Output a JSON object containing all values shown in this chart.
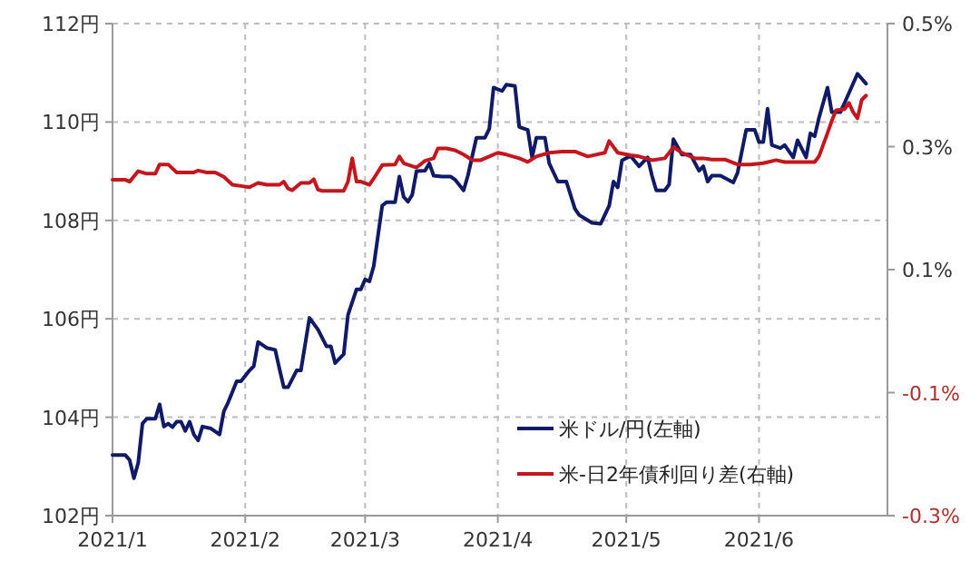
{
  "chart_data": {
    "type": "line",
    "grid": true,
    "legend": "bottom right",
    "xlim": [
      "2021-01-01",
      "2021-07-01"
    ],
    "xticks": [
      {
        "value": "2021-01-01",
        "label": "2021/1"
      },
      {
        "value": "2021-02-01",
        "label": "2021/2"
      },
      {
        "value": "2021-03-01",
        "label": "2021/3"
      },
      {
        "value": "2021-04-01",
        "label": "2021/4"
      },
      {
        "value": "2021-05-01",
        "label": "2021/5"
      },
      {
        "value": "2021-06-01",
        "label": "2021/6"
      }
    ],
    "ylim": [
      102,
      112
    ],
    "yticks": [
      {
        "value": 102,
        "label": "102円"
      },
      {
        "value": 104,
        "label": "104円"
      },
      {
        "value": 106,
        "label": "106円"
      },
      {
        "value": 108,
        "label": "108円"
      },
      {
        "value": 110,
        "label": "110円"
      },
      {
        "value": 112,
        "label": "112円"
      }
    ],
    "y2lim": [
      -0.3,
      0.5
    ],
    "y2ticks": [
      {
        "value": -0.3,
        "label": "-0.3%"
      },
      {
        "value": -0.1,
        "label": "-0.1%"
      },
      {
        "value": 0.1,
        "label": "0.1%"
      },
      {
        "value": 0.3,
        "label": "0.3%"
      },
      {
        "value": 0.5,
        "label": "0.5%"
      }
    ],
    "series": [
      {
        "name": "米ドル/円(左軸)",
        "color": "#101a66",
        "axis": "y",
        "x": [
          "2021-01-01",
          "2021-01-04",
          "2021-01-05",
          "2021-01-06",
          "2021-01-07",
          "2021-01-08",
          "2021-01-09",
          "2021-01-11",
          "2021-01-12",
          "2021-01-13",
          "2021-01-14",
          "2021-01-15",
          "2021-01-16",
          "2021-01-17",
          "2021-01-18",
          "2021-01-19",
          "2021-01-20",
          "2021-01-21",
          "2021-01-22",
          "2021-01-24",
          "2021-01-26",
          "2021-01-27",
          "2021-01-28",
          "2021-01-30",
          "2021-01-31",
          "2021-02-02",
          "2021-02-03",
          "2021-02-04",
          "2021-02-06",
          "2021-02-08",
          "2021-02-09",
          "2021-02-10",
          "2021-02-11",
          "2021-02-13",
          "2021-02-14",
          "2021-02-16",
          "2021-02-18",
          "2021-02-20",
          "2021-02-21",
          "2021-02-22",
          "2021-02-24",
          "2021-02-25",
          "2021-02-27",
          "2021-02-28",
          "2021-03-01",
          "2021-03-02",
          "2021-03-03",
          "2021-03-05",
          "2021-03-06",
          "2021-03-08",
          "2021-03-09",
          "2021-03-10",
          "2021-03-11",
          "2021-03-12",
          "2021-03-13",
          "2021-03-15",
          "2021-03-16",
          "2021-03-17",
          "2021-03-19",
          "2021-03-21",
          "2021-03-22",
          "2021-03-24",
          "2021-03-25",
          "2021-03-27",
          "2021-03-29",
          "2021-03-30",
          "2021-03-31",
          "2021-04-02",
          "2021-04-03",
          "2021-04-05",
          "2021-04-06",
          "2021-04-08",
          "2021-04-09",
          "2021-04-10",
          "2021-04-12",
          "2021-04-13",
          "2021-04-15",
          "2021-04-17",
          "2021-04-19",
          "2021-04-20",
          "2021-04-23",
          "2021-04-25",
          "2021-04-27",
          "2021-04-28",
          "2021-04-29",
          "2021-04-30",
          "2021-05-02",
          "2021-05-04",
          "2021-05-06",
          "2021-05-07",
          "2021-05-08",
          "2021-05-10",
          "2021-05-11",
          "2021-05-12",
          "2021-05-14",
          "2021-05-16",
          "2021-05-18",
          "2021-05-19",
          "2021-05-20",
          "2021-05-21",
          "2021-05-23",
          "2021-05-26",
          "2021-05-27",
          "2021-05-29",
          "2021-05-31",
          "2021-06-01",
          "2021-06-02",
          "2021-06-03",
          "2021-06-04",
          "2021-06-06",
          "2021-06-07",
          "2021-06-09",
          "2021-06-10",
          "2021-06-12",
          "2021-06-13",
          "2021-06-14",
          "2021-06-15",
          "2021-06-17",
          "2021-06-18",
          "2021-06-20",
          "2021-06-21",
          "2021-06-24",
          "2021-06-26"
        ],
        "values": [
          103.23,
          103.23,
          103.13,
          102.76,
          103.07,
          103.87,
          103.97,
          103.97,
          104.26,
          103.81,
          103.87,
          103.8,
          103.91,
          103.91,
          103.72,
          103.91,
          103.65,
          103.53,
          103.81,
          103.77,
          103.65,
          104.12,
          104.3,
          104.73,
          104.73,
          104.95,
          105.04,
          105.53,
          105.41,
          105.37,
          104.98,
          104.61,
          104.61,
          104.95,
          104.95,
          106.02,
          105.78,
          105.44,
          105.44,
          105.1,
          105.28,
          106.08,
          106.6,
          106.6,
          106.8,
          106.76,
          107.07,
          108.3,
          108.37,
          108.37,
          108.89,
          108.48,
          108.38,
          108.52,
          109.0,
          109.01,
          109.16,
          108.91,
          108.89,
          108.89,
          108.83,
          108.61,
          108.91,
          109.68,
          109.68,
          109.86,
          110.7,
          110.63,
          110.76,
          110.73,
          109.9,
          109.84,
          109.28,
          109.68,
          109.68,
          109.16,
          108.79,
          108.79,
          108.24,
          108.11,
          107.95,
          107.93,
          108.3,
          108.79,
          108.67,
          109.22,
          109.31,
          109.1,
          109.28,
          108.91,
          108.61,
          108.61,
          108.73,
          109.65,
          109.34,
          109.34,
          109.01,
          109.1,
          108.79,
          108.91,
          108.91,
          108.77,
          108.97,
          109.84,
          109.84,
          109.59,
          109.59,
          110.27,
          109.53,
          109.47,
          109.53,
          109.28,
          109.63,
          109.28,
          109.77,
          109.71,
          110.08,
          110.7,
          110.2,
          110.2,
          110.39,
          110.98,
          110.78
        ]
      },
      {
        "name": "米-日2年債利回り差(右軸)",
        "color": "#c4161c",
        "axis": "y2",
        "x": [
          "2021-01-01",
          "2021-01-04",
          "2021-01-05",
          "2021-01-07",
          "2021-01-09",
          "2021-01-11",
          "2021-01-12",
          "2021-01-14",
          "2021-01-16",
          "2021-01-20",
          "2021-01-21",
          "2021-01-23",
          "2021-01-25",
          "2021-01-27",
          "2021-01-29",
          "2021-01-31",
          "2021-02-02",
          "2021-02-04",
          "2021-02-06",
          "2021-02-09",
          "2021-02-10",
          "2021-02-11",
          "2021-02-12",
          "2021-02-14",
          "2021-02-16",
          "2021-02-17",
          "2021-02-18",
          "2021-02-19",
          "2021-02-24",
          "2021-02-25",
          "2021-02-26",
          "2021-02-27",
          "2021-02-28",
          "2021-03-02",
          "2021-03-03",
          "2021-03-05",
          "2021-03-08",
          "2021-03-09",
          "2021-03-10",
          "2021-03-13",
          "2021-03-15",
          "2021-03-17",
          "2021-03-18",
          "2021-03-20",
          "2021-03-22",
          "2021-03-24",
          "2021-03-26",
          "2021-03-28",
          "2021-03-30",
          "2021-04-01",
          "2021-04-03",
          "2021-04-06",
          "2021-04-08",
          "2021-04-10",
          "2021-04-13",
          "2021-04-16",
          "2021-04-19",
          "2021-04-22",
          "2021-04-26",
          "2021-04-27",
          "2021-04-29",
          "2021-05-02",
          "2021-05-04",
          "2021-05-07",
          "2021-05-10",
          "2021-05-12",
          "2021-05-14",
          "2021-05-17",
          "2021-05-19",
          "2021-05-21",
          "2021-05-24",
          "2021-05-27",
          "2021-05-30",
          "2021-06-02",
          "2021-06-05",
          "2021-06-07",
          "2021-06-10",
          "2021-06-14",
          "2021-06-15",
          "2021-06-17",
          "2021-06-18",
          "2021-06-19",
          "2021-06-21",
          "2021-06-22",
          "2021-06-23",
          "2021-06-24",
          "2021-06-25",
          "2021-06-26"
        ],
        "values": [
          0.246,
          0.246,
          0.243,
          0.26,
          0.256,
          0.256,
          0.271,
          0.271,
          0.258,
          0.258,
          0.261,
          0.258,
          0.258,
          0.251,
          0.238,
          0.236,
          0.234,
          0.241,
          0.238,
          0.238,
          0.243,
          0.232,
          0.229,
          0.241,
          0.241,
          0.247,
          0.23,
          0.228,
          0.228,
          0.243,
          0.281,
          0.243,
          0.243,
          0.238,
          0.248,
          0.27,
          0.271,
          0.284,
          0.273,
          0.266,
          0.277,
          0.281,
          0.297,
          0.297,
          0.294,
          0.287,
          0.278,
          0.278,
          0.284,
          0.29,
          0.287,
          0.281,
          0.275,
          0.284,
          0.29,
          0.292,
          0.292,
          0.284,
          0.29,
          0.309,
          0.29,
          0.286,
          0.284,
          0.278,
          0.281,
          0.299,
          0.29,
          0.281,
          0.281,
          0.279,
          0.279,
          0.271,
          0.271,
          0.273,
          0.278,
          0.275,
          0.275,
          0.275,
          0.284,
          0.322,
          0.342,
          0.359,
          0.361,
          0.371,
          0.356,
          0.346,
          0.376,
          0.383
        ]
      }
    ]
  }
}
